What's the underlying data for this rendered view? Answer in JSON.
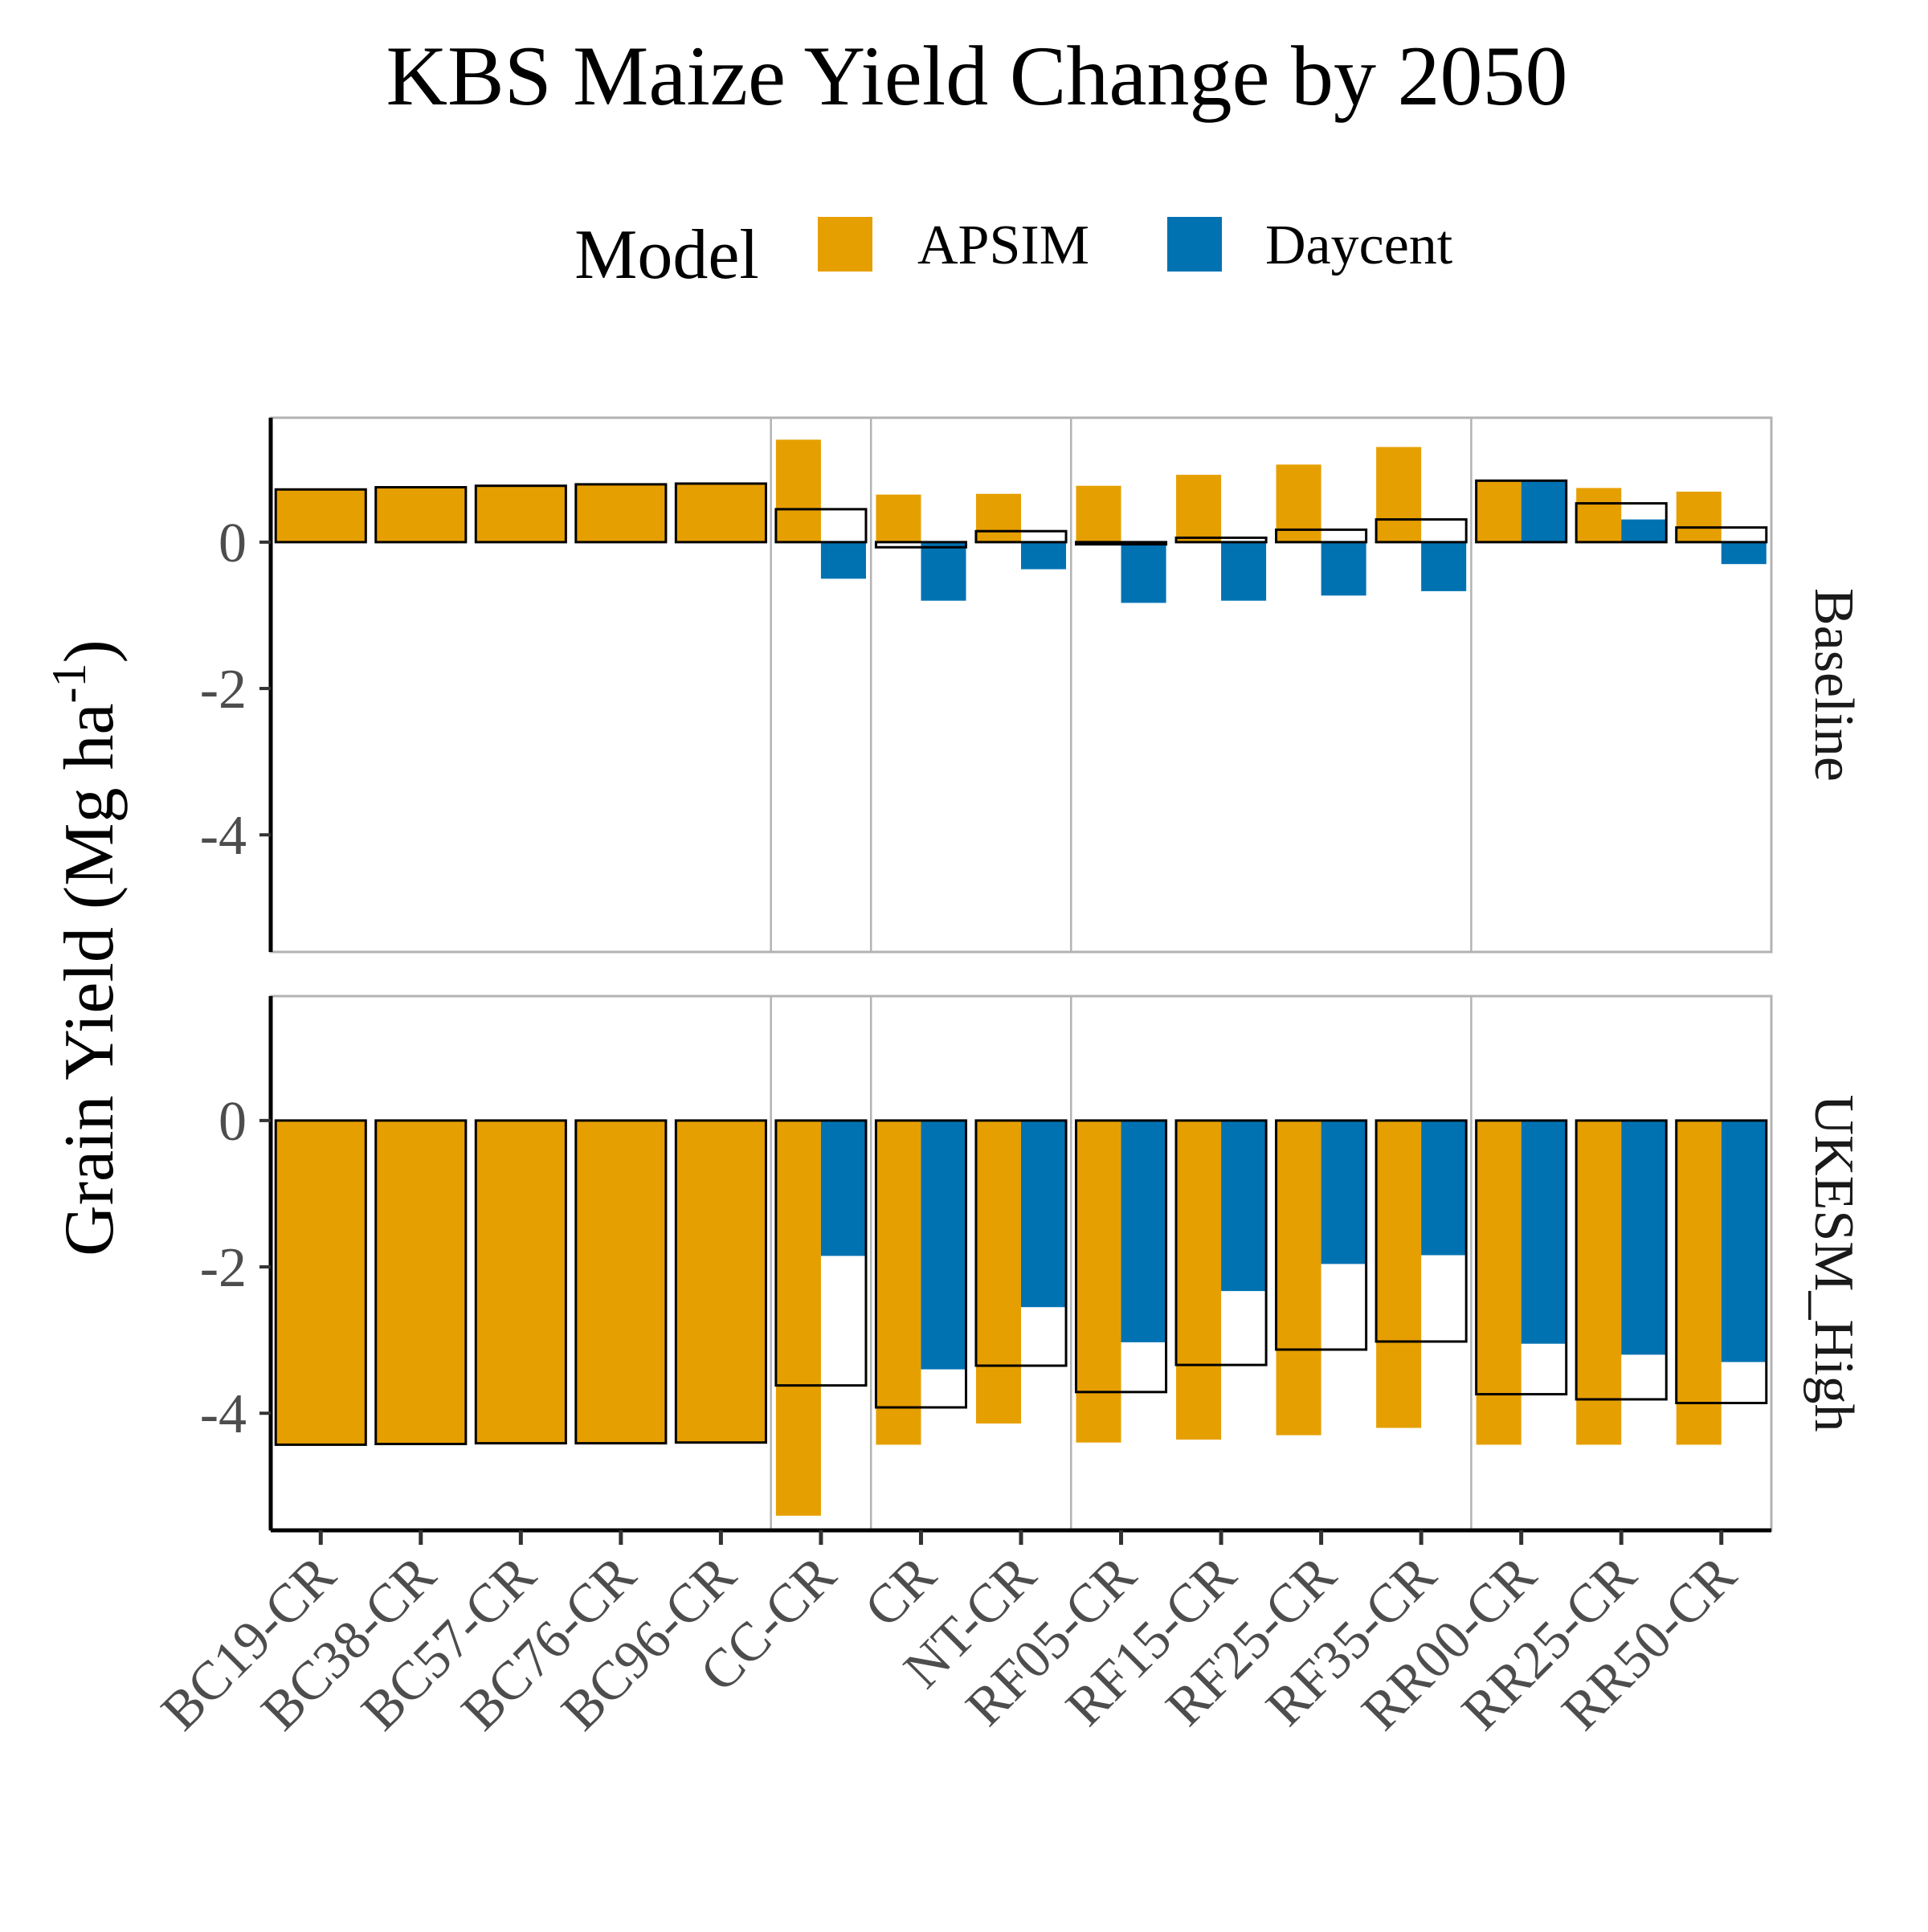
{
  "chart_data": {
    "type": "bar",
    "title": "KBS Maize Yield Change by 2050",
    "ylabel": "Grain Yield (Mg ha",
    "ylabel_exponent": "-1",
    "ylabel_close": ")",
    "xlabel": "",
    "ylim": [
      -5.6,
      1.7
    ],
    "y_ticks": [
      0,
      -2,
      -4
    ],
    "y_tick_labels": [
      "0",
      "-2",
      "-4"
    ],
    "grid": false,
    "legend": {
      "title": "Model",
      "position": "top",
      "items": [
        {
          "name": "APSIM",
          "color": "#E69F00"
        },
        {
          "name": "Daycent",
          "color": "#0072B2"
        }
      ]
    },
    "overlay_note": "black outlined bars show the mean of the two models",
    "categories": [
      "BC19-CR",
      "BC38-CR",
      "BC57-CR",
      "BC76-CR",
      "BC96-CR",
      "CC-CR",
      "CR",
      "NT-CR",
      "RF05-CR",
      "RF15-CR",
      "RF25-CR",
      "RF35-CR",
      "RR00-CR",
      "RR25-CR",
      "RR50-CR"
    ],
    "group_breaks_after": [
      5,
      6,
      8,
      12
    ],
    "panels": [
      {
        "name": "Baseline",
        "series": [
          {
            "name": "APSIM",
            "values": [
              0.72,
              0.75,
              0.77,
              0.79,
              0.8,
              1.4,
              0.65,
              0.66,
              0.77,
              0.92,
              1.06,
              1.3,
              0.84,
              0.74,
              0.69
            ]
          },
          {
            "name": "Daycent",
            "values": [
              null,
              null,
              null,
              null,
              null,
              -0.5,
              -0.8,
              -0.37,
              -0.83,
              -0.8,
              -0.73,
              -0.67,
              0.84,
              0.31,
              -0.3
            ]
          }
        ],
        "mean": [
          0.72,
          0.75,
          0.77,
          0.79,
          0.8,
          0.45,
          -0.07,
          0.15,
          -0.03,
          0.06,
          0.17,
          0.31,
          0.84,
          0.53,
          0.2
        ]
      },
      {
        "name": "UKESM_High",
        "series": [
          {
            "name": "APSIM",
            "values": [
              -4.43,
              -4.42,
              -4.41,
              -4.41,
              -4.4,
              -5.4,
              -4.43,
              -4.14,
              -4.4,
              -4.36,
              -4.3,
              -4.2,
              -4.43,
              -4.43,
              -4.43
            ]
          },
          {
            "name": "Daycent",
            "values": [
              null,
              null,
              null,
              null,
              null,
              -1.85,
              -3.4,
              -2.55,
              -3.03,
              -2.33,
              -1.96,
              -1.84,
              -3.05,
              -3.2,
              -3.3
            ]
          }
        ],
        "mean": [
          -4.43,
          -4.42,
          -4.41,
          -4.41,
          -4.4,
          -3.62,
          -3.92,
          -3.35,
          -3.71,
          -3.34,
          -3.13,
          -3.02,
          -3.74,
          -3.81,
          -3.86
        ]
      }
    ]
  }
}
